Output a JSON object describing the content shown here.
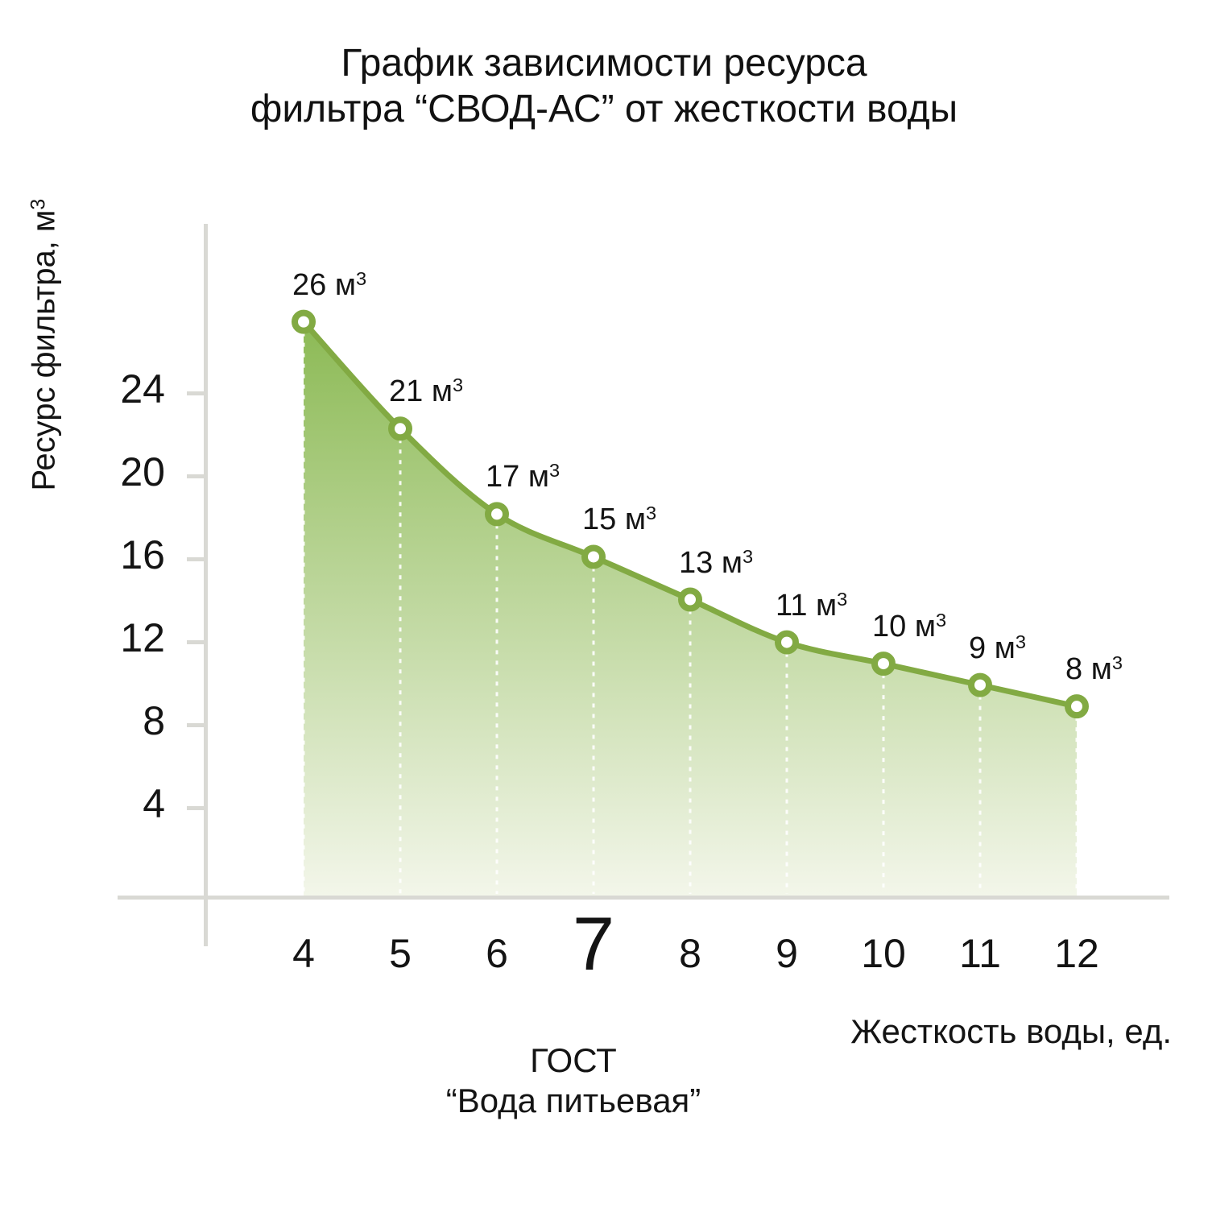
{
  "title": {
    "line1": "График зависимости ресурса",
    "line2": "фильтра “СВОД-АС” от жесткости воды"
  },
  "chart_data": {
    "type": "area",
    "x": [
      4,
      5,
      6,
      7,
      8,
      9,
      10,
      11,
      12
    ],
    "values": [
      26,
      21,
      17,
      15,
      13,
      11,
      10,
      9,
      8
    ],
    "point_labels": [
      "26 м³",
      "21 м³",
      "17 м³",
      "15 м³",
      "13 м³",
      "11 м³",
      "10 м³",
      "9 м³",
      "8 м³"
    ],
    "unit": "м³",
    "unit_base": "м",
    "unit_exponent": "3",
    "xlabel": "Жесткость воды, ед.",
    "ylabel": "Ресурс фильтра, м³",
    "ylabel_base": "Ресурс фильтра, м",
    "ylabel_exponent": "3",
    "y_ticks": [
      24,
      20,
      16,
      12,
      8,
      4
    ],
    "x_ticks": [
      4,
      5,
      6,
      7,
      8,
      9,
      10,
      11,
      12
    ],
    "emphasized_x_tick": 7,
    "emphasis_note_line1": "ГОСТ",
    "emphasis_note_line2": "“Вода питьевая”",
    "xlim": [
      4,
      12
    ],
    "ylim": [
      0,
      28
    ],
    "grid": false,
    "legend": false,
    "colors": {
      "line": "#82aa43",
      "marker_fill": "#ffffff",
      "fill_top": "#8cba55",
      "fill_bottom": "#f3f6ea",
      "axis": "#d9d9d4",
      "dash": "#ffffff",
      "text": "#141414"
    }
  }
}
